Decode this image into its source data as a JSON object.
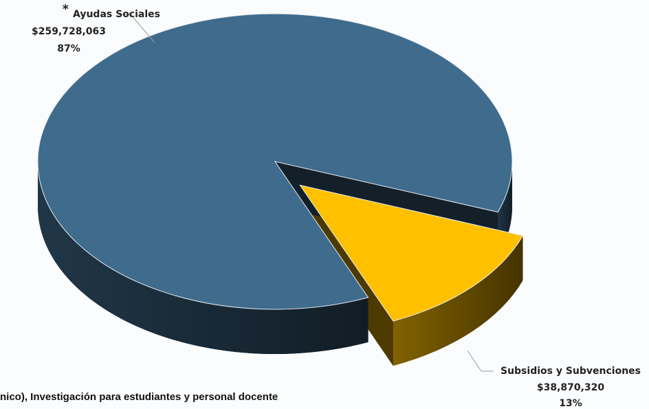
{
  "chart_data": {
    "type": "pie3d",
    "categories": [
      "Ayudas Sociales",
      "Subsidios y Subvenciones"
    ],
    "values": [
      259728063,
      38870320
    ],
    "value_labels": [
      "$259,728,063",
      "$38,870,320"
    ],
    "percent_labels": [
      "87%",
      "13%"
    ],
    "annotations": [
      "*"
    ],
    "colors": [
      "#3f6b8c",
      "#ffc000"
    ],
    "exploded": [
      false,
      true
    ],
    "footnote": "nico), Investigación para estudiantes y personal docente"
  }
}
